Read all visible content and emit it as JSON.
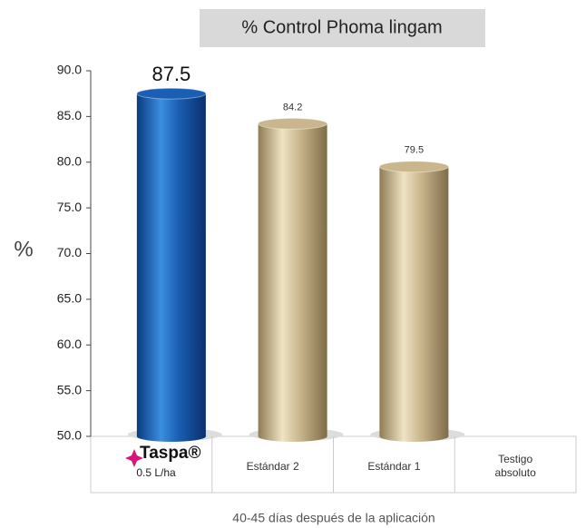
{
  "chart_data": {
    "type": "bar",
    "title": "% Control Phoma lingam",
    "y_label": "%",
    "x_label": "40-45 días después de la aplicación",
    "categories": [
      "Taspa®",
      "Estándar 2",
      "Estándar 1",
      "Testigo absoluto"
    ],
    "dose_label": "0.5 L/ha",
    "values": [
      87.5,
      84.2,
      79.5,
      null
    ],
    "colors": [
      "#1a5fb4",
      "#c9b68c",
      "#c9b68c",
      "#c9b68c"
    ],
    "ylim": [
      50,
      90
    ],
    "yticks": [
      {
        "value": 50,
        "label": "50.0"
      },
      {
        "value": 55,
        "label": "55.0"
      },
      {
        "value": 60,
        "label": "60.0"
      },
      {
        "value": 65,
        "label": "65.0"
      },
      {
        "value": 70,
        "label": "70.0"
      },
      {
        "value": 75,
        "label": "75.0"
      },
      {
        "value": 80,
        "label": "80.0"
      },
      {
        "value": 85,
        "label": "85.0"
      },
      {
        "value": 90,
        "label": "90.0"
      }
    ],
    "grid": false
  }
}
